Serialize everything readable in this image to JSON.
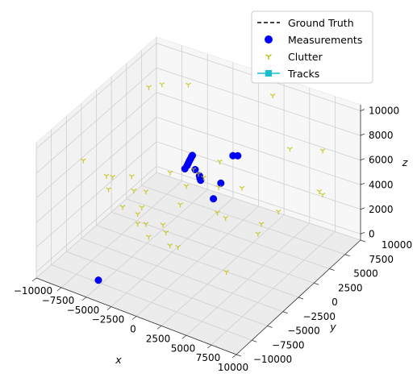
{
  "chart_data": {
    "type": "scatter3d",
    "axes": {
      "x": {
        "label": "x",
        "range": [
          -10000,
          10000
        ],
        "ticks": [
          "−10000",
          "−7500",
          "−5000",
          "−2500",
          "0",
          "2500",
          "5000",
          "7500",
          "10000"
        ]
      },
      "y": {
        "label": "y",
        "range": [
          -10000,
          10000
        ],
        "ticks": [
          "−10000",
          "−7500",
          "−5000",
          "−2500",
          "0",
          "2500",
          "5000",
          "7500",
          "10000"
        ]
      },
      "z": {
        "label": "z",
        "range": [
          -500,
          10500
        ],
        "ticks": [
          "0",
          "2000",
          "4000",
          "6000",
          "8000",
          "10000"
        ]
      }
    },
    "grid": true,
    "legend": {
      "placement": "top-right",
      "entries": [
        {
          "label": "Ground Truth",
          "style": "dashed-line",
          "color": "#000000"
        },
        {
          "label": "Measurements",
          "style": "circle",
          "color": "#0000ff"
        },
        {
          "label": "Clutter",
          "style": "tri-down",
          "color": "#bfbf00"
        },
        {
          "label": "Tracks",
          "style": "line-square",
          "color": "#17becf"
        }
      ]
    },
    "series": [
      {
        "name": "Measurements",
        "color": "#0000ff",
        "points": [
          {
            "x": -900,
            "y": -200,
            "z": 7100
          },
          {
            "x": -850,
            "y": -100,
            "z": 7250
          },
          {
            "x": -800,
            "y": 0,
            "z": 7400
          },
          {
            "x": -750,
            "y": 100,
            "z": 7550
          },
          {
            "x": -700,
            "y": 200,
            "z": 7700
          },
          {
            "x": -650,
            "y": 250,
            "z": 7800
          },
          {
            "x": -1000,
            "y": -400,
            "z": 6900
          },
          {
            "x": -400,
            "y": 300,
            "z": 6700
          },
          {
            "x": 200,
            "y": 0,
            "z": 6500
          },
          {
            "x": 200,
            "y": 100,
            "z": 6250
          },
          {
            "x": 200,
            "y": 200,
            "z": 6050
          },
          {
            "x": 2200,
            "y": 200,
            "z": 6400
          },
          {
            "x": 2600,
            "y": 2300,
            "z": 7800
          },
          {
            "x": 2300,
            "y": 2000,
            "z": 7850
          },
          {
            "x": 2800,
            "y": -2000,
            "z": 6300
          }
        ]
      },
      {
        "name": "Clutter",
        "color": "#bfbf00",
        "points": [
          {
            "x": -7500,
            "y": 4500,
            "z": 9500
          },
          {
            "x": -6500,
            "y": 5000,
            "z": 9800
          },
          {
            "x": -4500,
            "y": 6000,
            "z": 9900
          },
          {
            "x": 2000,
            "y": 9000,
            "z": 9500
          },
          {
            "x": -9500,
            "y": -3000,
            "z": 6200
          },
          {
            "x": -9000,
            "y": 0,
            "z": 3800
          },
          {
            "x": -8700,
            "y": 500,
            "z": 3600
          },
          {
            "x": -6500,
            "y": 0,
            "z": 4500
          },
          {
            "x": -6000,
            "y": -500,
            "z": 3700
          },
          {
            "x": -7000,
            "y": -3000,
            "z": 4600
          },
          {
            "x": -5000,
            "y": -4000,
            "z": 4200
          },
          {
            "x": -4000,
            "y": -2500,
            "z": 3800
          },
          {
            "x": -4200,
            "y": -1500,
            "z": 4600
          },
          {
            "x": -2900,
            "y": -5000,
            "z": 4700
          },
          {
            "x": -3500,
            "y": -4000,
            "z": 3300
          },
          {
            "x": -3000,
            "y": -3500,
            "z": 3200
          },
          {
            "x": -1500,
            "y": -5500,
            "z": 3500
          },
          {
            "x": -1000,
            "y": -3500,
            "z": 3100
          },
          {
            "x": 0,
            "y": -4500,
            "z": 2800
          },
          {
            "x": 500,
            "y": -4000,
            "z": 2600
          },
          {
            "x": -2500,
            "y": -1500,
            "z": 2400
          },
          {
            "x": -2000,
            "y": 500,
            "z": 3300
          },
          {
            "x": -2200,
            "y": 3000,
            "z": 5000
          },
          {
            "x": -3000,
            "y": 500,
            "z": 5600
          },
          {
            "x": -1500,
            "y": 3500,
            "z": 4300
          },
          {
            "x": -500,
            "y": 1000,
            "z": 6000
          },
          {
            "x": 1500,
            "y": 1000,
            "z": 5500
          },
          {
            "x": 3500,
            "y": 1500,
            "z": 5800
          },
          {
            "x": 5500,
            "y": 6000,
            "z": 7500
          },
          {
            "x": 7500,
            "y": 8000,
            "z": 7000
          },
          {
            "x": 6500,
            "y": 2500,
            "z": 4300
          },
          {
            "x": 6000,
            "y": 0,
            "z": 3500
          },
          {
            "x": 4000,
            "y": -2000,
            "z": 5100
          },
          {
            "x": 3500,
            "y": -2500,
            "z": 5600
          },
          {
            "x": 9000,
            "y": 5000,
            "z": 5500
          },
          {
            "x": 9200,
            "y": 5200,
            "z": 5200
          },
          {
            "x": 5000,
            "y": -3500,
            "z": 1700
          },
          {
            "x": 4800,
            "y": 2500,
            "z": 2800
          },
          {
            "x": 1000,
            "y": 2000,
            "z": 7000
          },
          {
            "x": -800,
            "y": -500,
            "z": 5600
          }
        ]
      },
      {
        "name": "Ground Truth",
        "color": "#000000",
        "points": []
      },
      {
        "name": "Tracks",
        "color": "#17becf",
        "points": []
      }
    ]
  }
}
